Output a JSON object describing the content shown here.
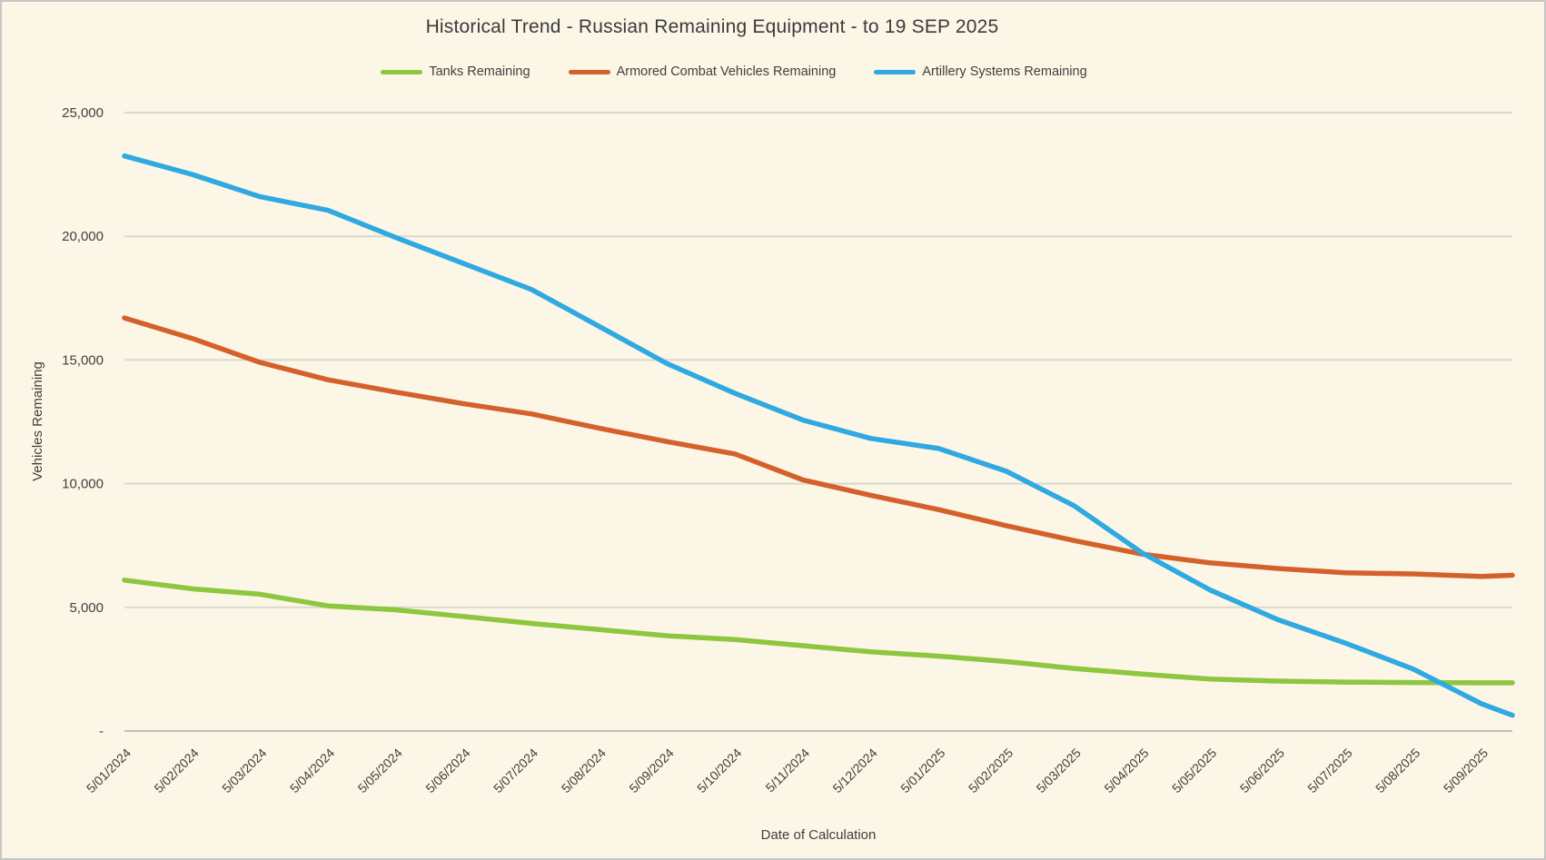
{
  "colors": {
    "background": "#FCF6E6",
    "border": "#C6C6C6",
    "grid": "#DAD8CE",
    "axis_line": "#C0BEB4",
    "text": "#3F3F3F"
  },
  "chart_data": {
    "type": "line",
    "title": "Historical Trend - Russian Remaining Equipment - to 19 SEP 2025",
    "xlabel": "Date of Calculation",
    "ylabel": "Vehicles Remaining",
    "ylim": [
      0,
      25000
    ],
    "ytick_interval": 5000,
    "ytick_labels": [
      "-",
      "5,000",
      "10,000",
      "15,000",
      "20,000",
      "25,000"
    ],
    "grid": "horizontal gridlines only",
    "legend_position": "top",
    "x_ticks": [
      "5/01/2024",
      "5/02/2024",
      "5/03/2024",
      "5/04/2024",
      "5/05/2024",
      "5/06/2024",
      "5/07/2024",
      "5/08/2024",
      "5/09/2024",
      "5/10/2024",
      "5/11/2024",
      "5/12/2024",
      "5/01/2025",
      "5/02/2025",
      "5/03/2025",
      "5/04/2025",
      "5/05/2025",
      "5/06/2025",
      "5/07/2025",
      "5/08/2025",
      "5/09/2025"
    ],
    "values_note": "22 points per series: one at each monthly x tick plus a final value at the chart's right edge (19 SEP 2025, per title). Values estimated from pixel positions.",
    "series": [
      {
        "name": "Tanks Remaining",
        "color": "#8DC63F",
        "values": [
          6100,
          5750,
          5530,
          5060,
          4900,
          4630,
          4350,
          4100,
          3850,
          3700,
          3450,
          3200,
          3030,
          2810,
          2530,
          2300,
          2100,
          2020,
          1980,
          1960,
          1950,
          1950
        ]
      },
      {
        "name": "Armored Combat Vehicles Remaining",
        "color": "#D4612B",
        "values": [
          16700,
          15870,
          14900,
          14200,
          13700,
          13230,
          12820,
          12240,
          11700,
          11200,
          10150,
          9530,
          8950,
          8300,
          7700,
          7150,
          6800,
          6570,
          6400,
          6350,
          6250,
          6300
        ]
      },
      {
        "name": "Artillery Systems Remaining",
        "color": "#2FA9E1",
        "values": [
          23250,
          22500,
          21600,
          21050,
          19950,
          18900,
          17850,
          16350,
          14850,
          13650,
          12570,
          11830,
          11420,
          10500,
          9100,
          7200,
          5700,
          4500,
          3550,
          2500,
          1100,
          640
        ]
      }
    ]
  }
}
